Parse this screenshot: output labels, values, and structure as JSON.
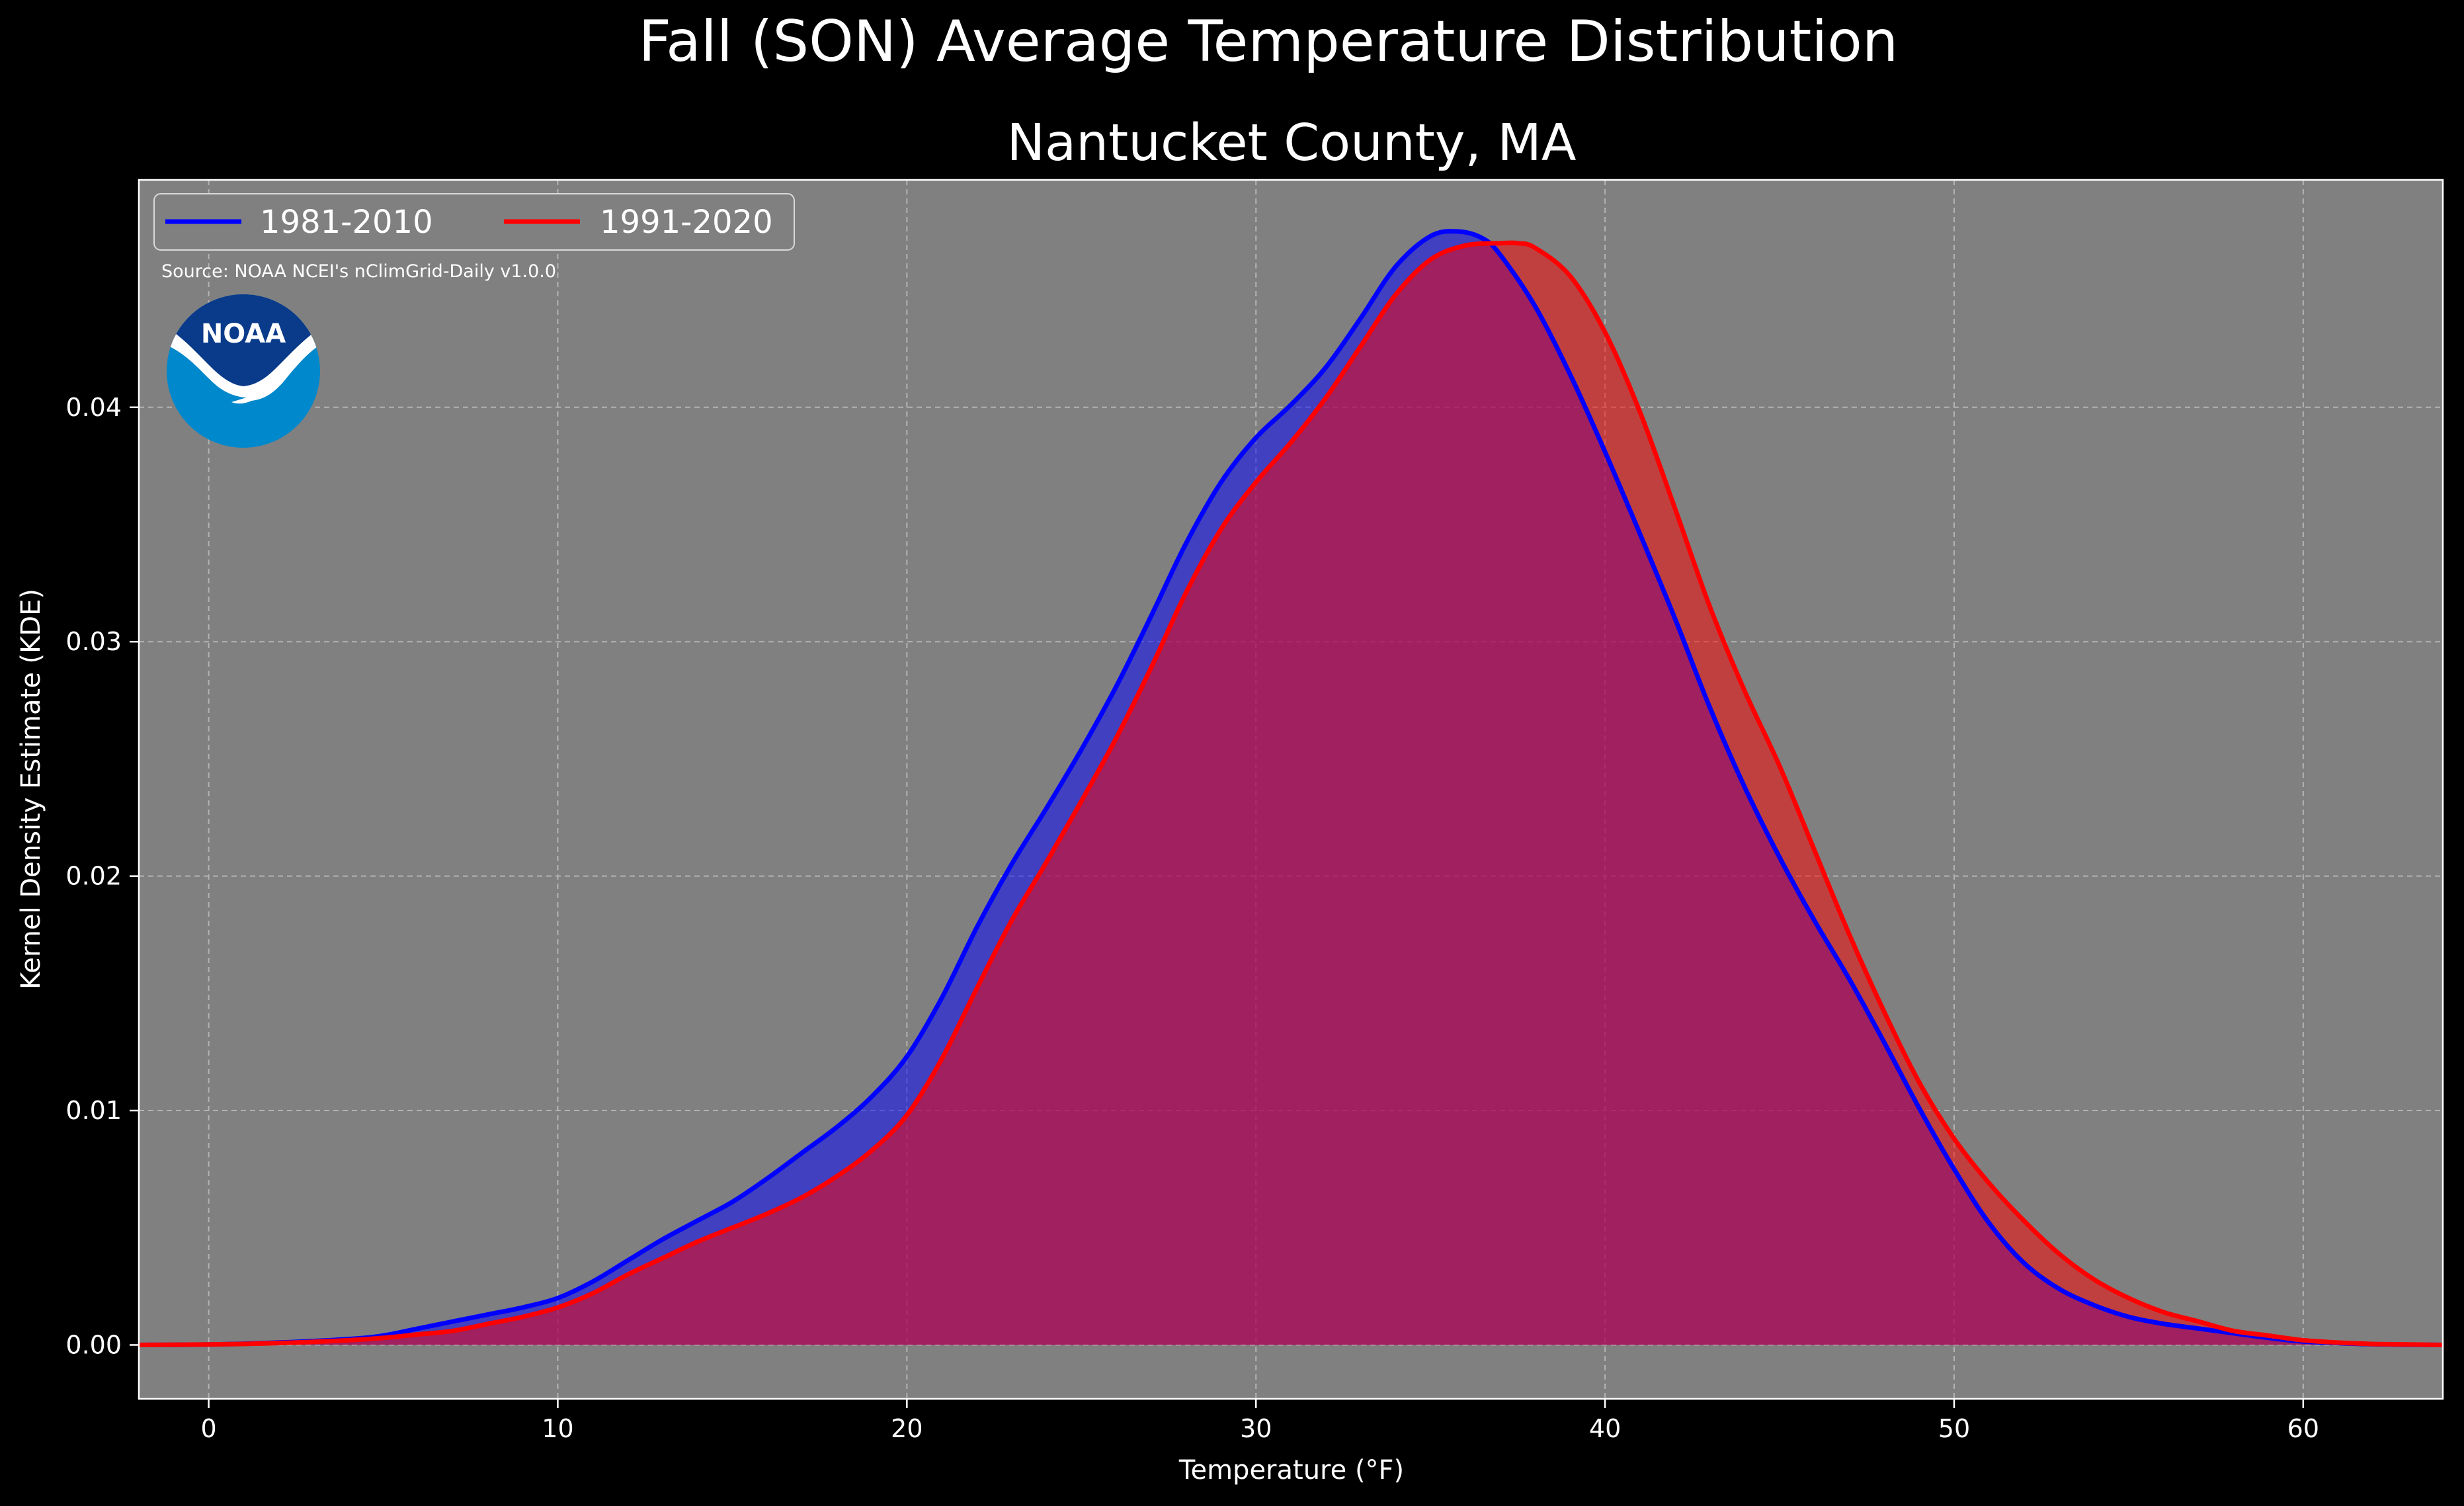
{
  "figure": {
    "suptitle": "Fall (SON) Average Temperature Distribution",
    "background": "#000000",
    "plot_background": "#808080"
  },
  "source_note": "Source: NOAA NCEI's nClimGrid-Daily v1.0.0",
  "logo": {
    "text": "NOAA",
    "icon": "noaa-logo-icon",
    "colors": {
      "dark": "#0a3a8a",
      "light": "#0088cc",
      "white": "#ffffff"
    }
  },
  "chart_data": {
    "type": "area",
    "title": "Nantucket County, MA",
    "xlabel": "Temperature ($^\\circ$F)",
    "xlabel_display": "Temperature (°F)",
    "ylabel": "Kernel Density Estimate (KDE)",
    "xlim": [
      -2,
      64
    ],
    "ylim": [
      -0.0023,
      0.0497
    ],
    "xticks": [
      0,
      10,
      20,
      30,
      40,
      50,
      60
    ],
    "xtick_labels": [
      "0",
      "10",
      "20",
      "30",
      "40",
      "50",
      "60"
    ],
    "yticks": [
      0.0,
      0.01,
      0.02,
      0.03,
      0.04
    ],
    "ytick_labels": [
      "0.00",
      "0.01",
      "0.02",
      "0.03",
      "0.04"
    ],
    "grid": true,
    "legend": {
      "placement": "upper-left",
      "columns": 2
    },
    "series": [
      {
        "name": "1981-2010",
        "color": "#0000ff",
        "fill": "#0000ff",
        "x": [
          -2,
          0,
          2,
          4,
          5,
          6,
          7,
          8,
          9,
          10,
          11,
          12,
          13,
          14,
          15,
          16,
          17,
          18,
          19,
          20,
          21,
          22,
          23,
          24,
          25,
          26,
          27,
          28,
          29,
          30,
          31,
          32,
          33,
          34,
          35,
          35.8,
          36.5,
          37,
          38,
          39,
          40,
          41,
          42,
          43,
          44,
          45,
          46,
          47,
          48,
          49,
          50,
          51,
          52,
          53,
          54,
          55,
          56,
          57,
          58,
          59,
          60,
          61,
          62,
          63,
          64
        ],
        "y": [
          0.0,
          2e-05,
          0.0001,
          0.00025,
          0.0004,
          0.0007,
          0.001,
          0.0013,
          0.0016,
          0.002,
          0.0027,
          0.0036,
          0.0045,
          0.0053,
          0.0061,
          0.0071,
          0.0082,
          0.0093,
          0.0106,
          0.0123,
          0.0148,
          0.0178,
          0.0205,
          0.0229,
          0.0254,
          0.0281,
          0.0311,
          0.0342,
          0.0368,
          0.0387,
          0.0401,
          0.0417,
          0.0438,
          0.046,
          0.0473,
          0.0475,
          0.0472,
          0.0465,
          0.0443,
          0.0414,
          0.0381,
          0.0346,
          0.031,
          0.0272,
          0.0238,
          0.0208,
          0.0181,
          0.0156,
          0.0129,
          0.0101,
          0.0075,
          0.0052,
          0.0035,
          0.0024,
          0.0017,
          0.0012,
          0.0009,
          0.0007,
          0.0005,
          0.0003,
          0.00015,
          8e-05,
          3e-05,
          1e-05,
          0.0
        ]
      },
      {
        "name": "1991-2020",
        "color": "#ff0000",
        "fill": "#ff0000",
        "x": [
          -2,
          0,
          2,
          4,
          5,
          6,
          7,
          8,
          9,
          10,
          11,
          12,
          13,
          14,
          15,
          16,
          17,
          18,
          19,
          20,
          21,
          22,
          23,
          24,
          25,
          26,
          27,
          28,
          29,
          30,
          31,
          32,
          33,
          34,
          35,
          36,
          37,
          37.5,
          38,
          39,
          40,
          41,
          42,
          43,
          44,
          45,
          46,
          47,
          48,
          49,
          50,
          51,
          52,
          53,
          54,
          55,
          56,
          57,
          58,
          59,
          60,
          61,
          62,
          63,
          64
        ],
        "y": [
          0.0,
          2e-05,
          8e-05,
          0.0002,
          0.0003,
          0.00045,
          0.0006,
          0.0009,
          0.0012,
          0.0016,
          0.0022,
          0.003,
          0.0037,
          0.0044,
          0.005,
          0.0056,
          0.0063,
          0.0072,
          0.0083,
          0.0098,
          0.0122,
          0.0152,
          0.0181,
          0.0206,
          0.0232,
          0.0259,
          0.0289,
          0.0321,
          0.0348,
          0.0368,
          0.0385,
          0.0404,
          0.0426,
          0.0448,
          0.0463,
          0.0469,
          0.047,
          0.047,
          0.0468,
          0.0456,
          0.0432,
          0.0398,
          0.0357,
          0.0315,
          0.0279,
          0.0247,
          0.0211,
          0.0175,
          0.0142,
          0.0112,
          0.0088,
          0.0069,
          0.0053,
          0.0039,
          0.0028,
          0.002,
          0.0014,
          0.001,
          0.0006,
          0.0004,
          0.0002,
          0.0001,
          4e-05,
          2e-05,
          0.0
        ]
      }
    ]
  }
}
